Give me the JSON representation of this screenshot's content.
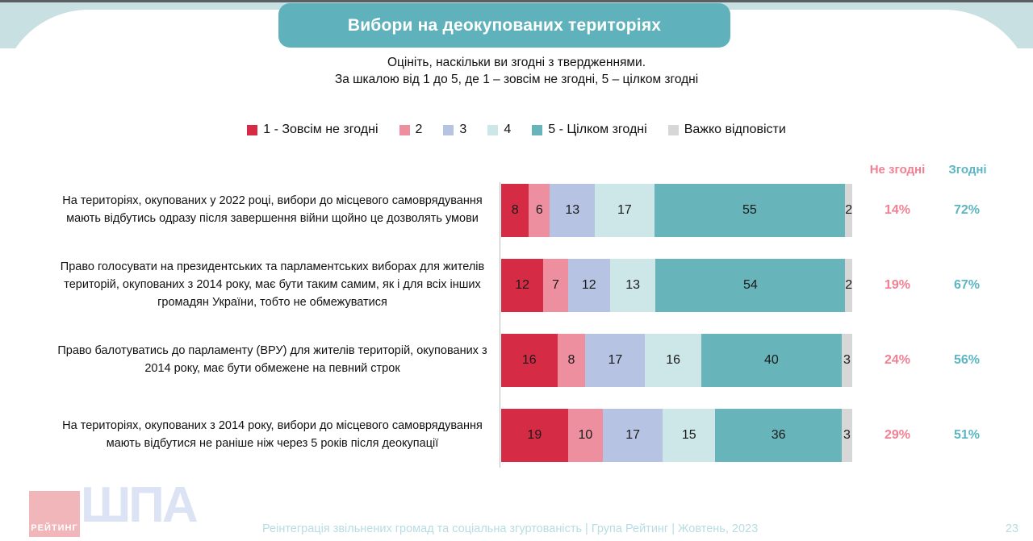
{
  "title": "Вибори на деокупованих територіях",
  "subtitle": {
    "line1": "Оцініть, наскільки ви згодні з твердженнями.",
    "line2": "За шкалою від 1 до 5, де 1 – зовсім не згодні, 5 – цілком згодні"
  },
  "columns": {
    "disagree": "Не згодні",
    "agree": "Згодні"
  },
  "logos": {
    "rating": "РЕЙТИНГ",
    "shpa": "ШПА"
  },
  "footer": {
    "text": "Реінтеграція звільнених громад та соціальна згуртованість | Група Рейтинг | Жовтень, 2023",
    "page": "23"
  },
  "chart_data": {
    "type": "bar",
    "orientation": "horizontal",
    "stacked": true,
    "title": "Вибори на деокупованих територіях",
    "legend_position": "top",
    "xlim": [
      0,
      100
    ],
    "grid": false,
    "legend": [
      "1 - Зовсім не згодні",
      "2",
      "3",
      "4",
      "5 - Цілком згодні",
      "Важко відповісти"
    ],
    "colors": [
      "#d62b45",
      "#ee8fa0",
      "#b7c3e3",
      "#cde6e8",
      "#68b4bb",
      "#d7d7d7"
    ],
    "rows": [
      {
        "category": "На територіях, окупованих у 2022 році, вибори до місцевого самоврядування мають відбутись одразу після завершення війни щойно це дозволять умови",
        "values": [
          8,
          6,
          13,
          17,
          55,
          2
        ],
        "disagree_pct": "14%",
        "agree_pct": "72%"
      },
      {
        "category": "Право голосувати на президентських та парламентських виборах для жителів територій, окупованих з 2014 року, має бути таким самим, як і для всіх інших громадян України, тобто не обмежуватися",
        "values": [
          12,
          7,
          12,
          13,
          54,
          2
        ],
        "disagree_pct": "19%",
        "agree_pct": "67%"
      },
      {
        "category": "Право балотуватись до парламенту (ВРУ) для жителів територій, окупованих з 2014 року, має бути обмежене на певний строк",
        "values": [
          16,
          8,
          17,
          16,
          40,
          3
        ],
        "disagree_pct": "24%",
        "agree_pct": "56%"
      },
      {
        "category": "На територіях, окупованих з 2014 року, вибори до місцевого самоврядування мають відбутися не раніше ніж через 5 років після деокупації",
        "values": [
          19,
          10,
          17,
          15,
          36,
          3
        ],
        "disagree_pct": "29%",
        "agree_pct": "51%"
      }
    ]
  }
}
